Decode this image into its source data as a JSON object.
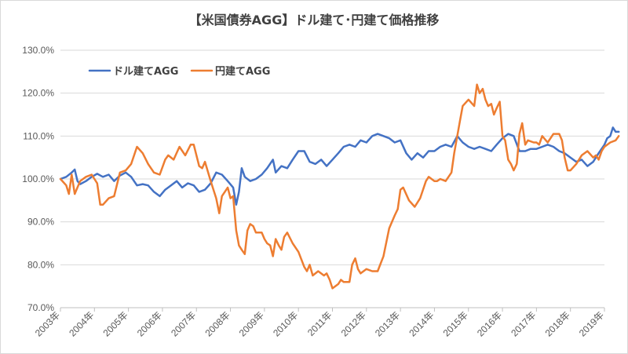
{
  "chart_data": {
    "type": "line",
    "title": "【米国債券AGG】ドル建て･円建て価格推移",
    "xlabel": "",
    "ylabel": "",
    "x_ticks": [
      "2003年",
      "2004年",
      "2005年",
      "2006年",
      "2007年",
      "2008年",
      "2009年",
      "2010年",
      "2011年",
      "2012年",
      "2013年",
      "2014年",
      "2015年",
      "2016年",
      "2017年",
      "2018年",
      "2019年"
    ],
    "x_range": [
      2003.0,
      2019.0
    ],
    "y_ticks": [
      "70.0%",
      "80.0%",
      "90.0%",
      "100.0%",
      "110.0%",
      "120.0%",
      "130.0%"
    ],
    "ylim": [
      70,
      130
    ],
    "grid": "horizontal",
    "legend_position": "top-left",
    "series": [
      {
        "name": "ドル建てAGG",
        "color": "#4472c4",
        "points": [
          [
            2003.0,
            100.0
          ],
          [
            2003.17,
            100.5
          ],
          [
            2003.33,
            101.5
          ],
          [
            2003.42,
            102.2
          ],
          [
            2003.5,
            99.5
          ],
          [
            2003.58,
            98.8
          ],
          [
            2003.75,
            99.5
          ],
          [
            2003.92,
            100.5
          ],
          [
            2004.08,
            101.2
          ],
          [
            2004.25,
            100.5
          ],
          [
            2004.42,
            101.0
          ],
          [
            2004.58,
            99.5
          ],
          [
            2004.75,
            100.8
          ],
          [
            2004.92,
            101.5
          ],
          [
            2005.08,
            100.5
          ],
          [
            2005.25,
            98.5
          ],
          [
            2005.42,
            98.8
          ],
          [
            2005.58,
            98.5
          ],
          [
            2005.75,
            97.0
          ],
          [
            2005.92,
            96.0
          ],
          [
            2006.08,
            97.5
          ],
          [
            2006.25,
            98.5
          ],
          [
            2006.42,
            99.5
          ],
          [
            2006.58,
            98.0
          ],
          [
            2006.75,
            99.0
          ],
          [
            2006.92,
            98.5
          ],
          [
            2007.08,
            97.0
          ],
          [
            2007.25,
            97.5
          ],
          [
            2007.42,
            99.0
          ],
          [
            2007.58,
            101.5
          ],
          [
            2007.75,
            101.0
          ],
          [
            2007.92,
            99.5
          ],
          [
            2008.08,
            98.0
          ],
          [
            2008.17,
            94.0
          ],
          [
            2008.25,
            97.0
          ],
          [
            2008.33,
            102.5
          ],
          [
            2008.42,
            100.5
          ],
          [
            2008.58,
            99.5
          ],
          [
            2008.75,
            100.0
          ],
          [
            2008.92,
            101.0
          ],
          [
            2009.08,
            102.5
          ],
          [
            2009.25,
            104.5
          ],
          [
            2009.33,
            101.5
          ],
          [
            2009.5,
            103.0
          ],
          [
            2009.67,
            102.5
          ],
          [
            2009.83,
            104.5
          ],
          [
            2010.0,
            106.5
          ],
          [
            2010.17,
            106.5
          ],
          [
            2010.33,
            104.0
          ],
          [
            2010.5,
            103.5
          ],
          [
            2010.67,
            104.5
          ],
          [
            2010.83,
            103.0
          ],
          [
            2011.0,
            104.5
          ],
          [
            2011.17,
            106.0
          ],
          [
            2011.33,
            107.5
          ],
          [
            2011.5,
            108.0
          ],
          [
            2011.67,
            107.5
          ],
          [
            2011.83,
            109.0
          ],
          [
            2012.0,
            108.5
          ],
          [
            2012.17,
            110.0
          ],
          [
            2012.33,
            110.5
          ],
          [
            2012.5,
            110.0
          ],
          [
            2012.67,
            109.5
          ],
          [
            2012.83,
            108.5
          ],
          [
            2013.0,
            109.0
          ],
          [
            2013.17,
            106.0
          ],
          [
            2013.33,
            104.5
          ],
          [
            2013.5,
            106.0
          ],
          [
            2013.67,
            105.0
          ],
          [
            2013.83,
            106.5
          ],
          [
            2014.0,
            106.5
          ],
          [
            2014.17,
            107.5
          ],
          [
            2014.33,
            108.0
          ],
          [
            2014.5,
            107.5
          ],
          [
            2014.67,
            110.0
          ],
          [
            2014.83,
            108.5
          ],
          [
            2015.0,
            107.5
          ],
          [
            2015.17,
            107.0
          ],
          [
            2015.33,
            107.5
          ],
          [
            2015.5,
            107.0
          ],
          [
            2015.67,
            106.5
          ],
          [
            2015.83,
            108.0
          ],
          [
            2016.0,
            109.5
          ],
          [
            2016.17,
            110.5
          ],
          [
            2016.33,
            110.0
          ],
          [
            2016.5,
            106.5
          ],
          [
            2016.67,
            106.5
          ],
          [
            2016.83,
            107.0
          ],
          [
            2017.0,
            107.0
          ],
          [
            2017.17,
            107.5
          ],
          [
            2017.33,
            108.0
          ],
          [
            2017.5,
            107.5
          ],
          [
            2017.67,
            106.5
          ],
          [
            2017.83,
            106.0
          ],
          [
            2018.0,
            105.0
          ],
          [
            2018.17,
            104.0
          ],
          [
            2018.33,
            104.5
          ],
          [
            2018.5,
            103.0
          ],
          [
            2018.67,
            104.0
          ],
          [
            2018.83,
            106.0
          ],
          [
            2019.0,
            108.0
          ],
          [
            2019.08,
            109.5
          ],
          [
            2019.17,
            110.0
          ],
          [
            2019.25,
            112.0
          ],
          [
            2019.33,
            111.0
          ],
          [
            2019.42,
            111.0
          ]
        ]
      },
      {
        "name": "円建てAGG",
        "color": "#ed7d31",
        "points": [
          [
            2003.0,
            100.0
          ],
          [
            2003.17,
            98.5
          ],
          [
            2003.25,
            96.5
          ],
          [
            2003.33,
            101.0
          ],
          [
            2003.42,
            96.5
          ],
          [
            2003.58,
            99.5
          ],
          [
            2003.75,
            100.5
          ],
          [
            2003.92,
            101.0
          ],
          [
            2004.08,
            99.0
          ],
          [
            2004.17,
            94.0
          ],
          [
            2004.25,
            94.0
          ],
          [
            2004.42,
            95.5
          ],
          [
            2004.58,
            96.0
          ],
          [
            2004.75,
            101.5
          ],
          [
            2004.92,
            102.0
          ],
          [
            2005.08,
            103.5
          ],
          [
            2005.25,
            107.5
          ],
          [
            2005.42,
            106.0
          ],
          [
            2005.58,
            103.5
          ],
          [
            2005.75,
            101.5
          ],
          [
            2005.92,
            101.0
          ],
          [
            2006.08,
            104.5
          ],
          [
            2006.17,
            105.5
          ],
          [
            2006.33,
            104.5
          ],
          [
            2006.5,
            107.5
          ],
          [
            2006.67,
            105.5
          ],
          [
            2006.83,
            108.0
          ],
          [
            2006.92,
            108.0
          ],
          [
            2007.08,
            103.0
          ],
          [
            2007.17,
            102.5
          ],
          [
            2007.25,
            104.0
          ],
          [
            2007.42,
            99.5
          ],
          [
            2007.58,
            95.5
          ],
          [
            2007.67,
            92.0
          ],
          [
            2007.75,
            96.0
          ],
          [
            2007.92,
            98.0
          ],
          [
            2008.0,
            95.5
          ],
          [
            2008.08,
            96.0
          ],
          [
            2008.17,
            88.0
          ],
          [
            2008.25,
            84.5
          ],
          [
            2008.33,
            83.5
          ],
          [
            2008.42,
            82.5
          ],
          [
            2008.5,
            88.0
          ],
          [
            2008.58,
            89.5
          ],
          [
            2008.67,
            89.0
          ],
          [
            2008.75,
            87.5
          ],
          [
            2008.92,
            87.5
          ],
          [
            2009.0,
            86.0
          ],
          [
            2009.08,
            85.0
          ],
          [
            2009.17,
            84.5
          ],
          [
            2009.25,
            82.0
          ],
          [
            2009.33,
            86.0
          ],
          [
            2009.42,
            84.5
          ],
          [
            2009.5,
            83.5
          ],
          [
            2009.58,
            86.5
          ],
          [
            2009.67,
            87.5
          ],
          [
            2009.83,
            85.0
          ],
          [
            2010.0,
            83.0
          ],
          [
            2010.17,
            79.5
          ],
          [
            2010.25,
            78.5
          ],
          [
            2010.33,
            80.0
          ],
          [
            2010.42,
            77.5
          ],
          [
            2010.58,
            78.5
          ],
          [
            2010.75,
            77.5
          ],
          [
            2010.83,
            78.0
          ],
          [
            2010.92,
            76.5
          ],
          [
            2011.0,
            74.5
          ],
          [
            2011.17,
            75.5
          ],
          [
            2011.25,
            76.5
          ],
          [
            2011.33,
            76.0
          ],
          [
            2011.5,
            76.0
          ],
          [
            2011.58,
            80.0
          ],
          [
            2011.67,
            81.5
          ],
          [
            2011.75,
            79.0
          ],
          [
            2011.83,
            78.0
          ],
          [
            2012.0,
            79.0
          ],
          [
            2012.17,
            78.5
          ],
          [
            2012.33,
            78.5
          ],
          [
            2012.5,
            82.0
          ],
          [
            2012.67,
            88.5
          ],
          [
            2012.83,
            91.5
          ],
          [
            2012.92,
            93.0
          ],
          [
            2013.0,
            97.5
          ],
          [
            2013.08,
            98.0
          ],
          [
            2013.25,
            95.0
          ],
          [
            2013.42,
            93.5
          ],
          [
            2013.58,
            95.5
          ],
          [
            2013.75,
            99.5
          ],
          [
            2013.83,
            100.5
          ],
          [
            2014.0,
            99.5
          ],
          [
            2014.08,
            99.5
          ],
          [
            2014.17,
            100.0
          ],
          [
            2014.33,
            99.5
          ],
          [
            2014.5,
            101.5
          ],
          [
            2014.58,
            106.0
          ],
          [
            2014.75,
            113.5
          ],
          [
            2014.83,
            117.0
          ],
          [
            2015.0,
            118.5
          ],
          [
            2015.17,
            117.0
          ],
          [
            2015.25,
            122.0
          ],
          [
            2015.33,
            120.0
          ],
          [
            2015.42,
            121.0
          ],
          [
            2015.5,
            118.5
          ],
          [
            2015.58,
            117.0
          ],
          [
            2015.67,
            117.5
          ],
          [
            2015.75,
            115.0
          ],
          [
            2015.83,
            116.5
          ],
          [
            2015.92,
            118.0
          ],
          [
            2016.0,
            110.0
          ],
          [
            2016.08,
            109.0
          ],
          [
            2016.17,
            104.5
          ],
          [
            2016.25,
            103.5
          ],
          [
            2016.33,
            102.0
          ],
          [
            2016.42,
            103.5
          ],
          [
            2016.5,
            110.5
          ],
          [
            2016.58,
            113.0
          ],
          [
            2016.67,
            108.0
          ],
          [
            2016.75,
            109.0
          ],
          [
            2016.92,
            108.5
          ],
          [
            2017.0,
            108.5
          ],
          [
            2017.08,
            108.0
          ],
          [
            2017.17,
            110.0
          ],
          [
            2017.33,
            108.5
          ],
          [
            2017.5,
            110.5
          ],
          [
            2017.67,
            110.5
          ],
          [
            2017.75,
            109.0
          ],
          [
            2017.83,
            105.0
          ],
          [
            2017.92,
            102.0
          ],
          [
            2018.0,
            102.0
          ],
          [
            2018.17,
            103.5
          ],
          [
            2018.33,
            105.5
          ],
          [
            2018.5,
            106.5
          ],
          [
            2018.67,
            105.0
          ],
          [
            2018.75,
            105.5
          ],
          [
            2018.83,
            104.5
          ],
          [
            2018.92,
            106.5
          ],
          [
            2019.0,
            107.5
          ],
          [
            2019.17,
            108.5
          ],
          [
            2019.33,
            109.0
          ],
          [
            2019.42,
            110.0
          ]
        ]
      }
    ]
  }
}
